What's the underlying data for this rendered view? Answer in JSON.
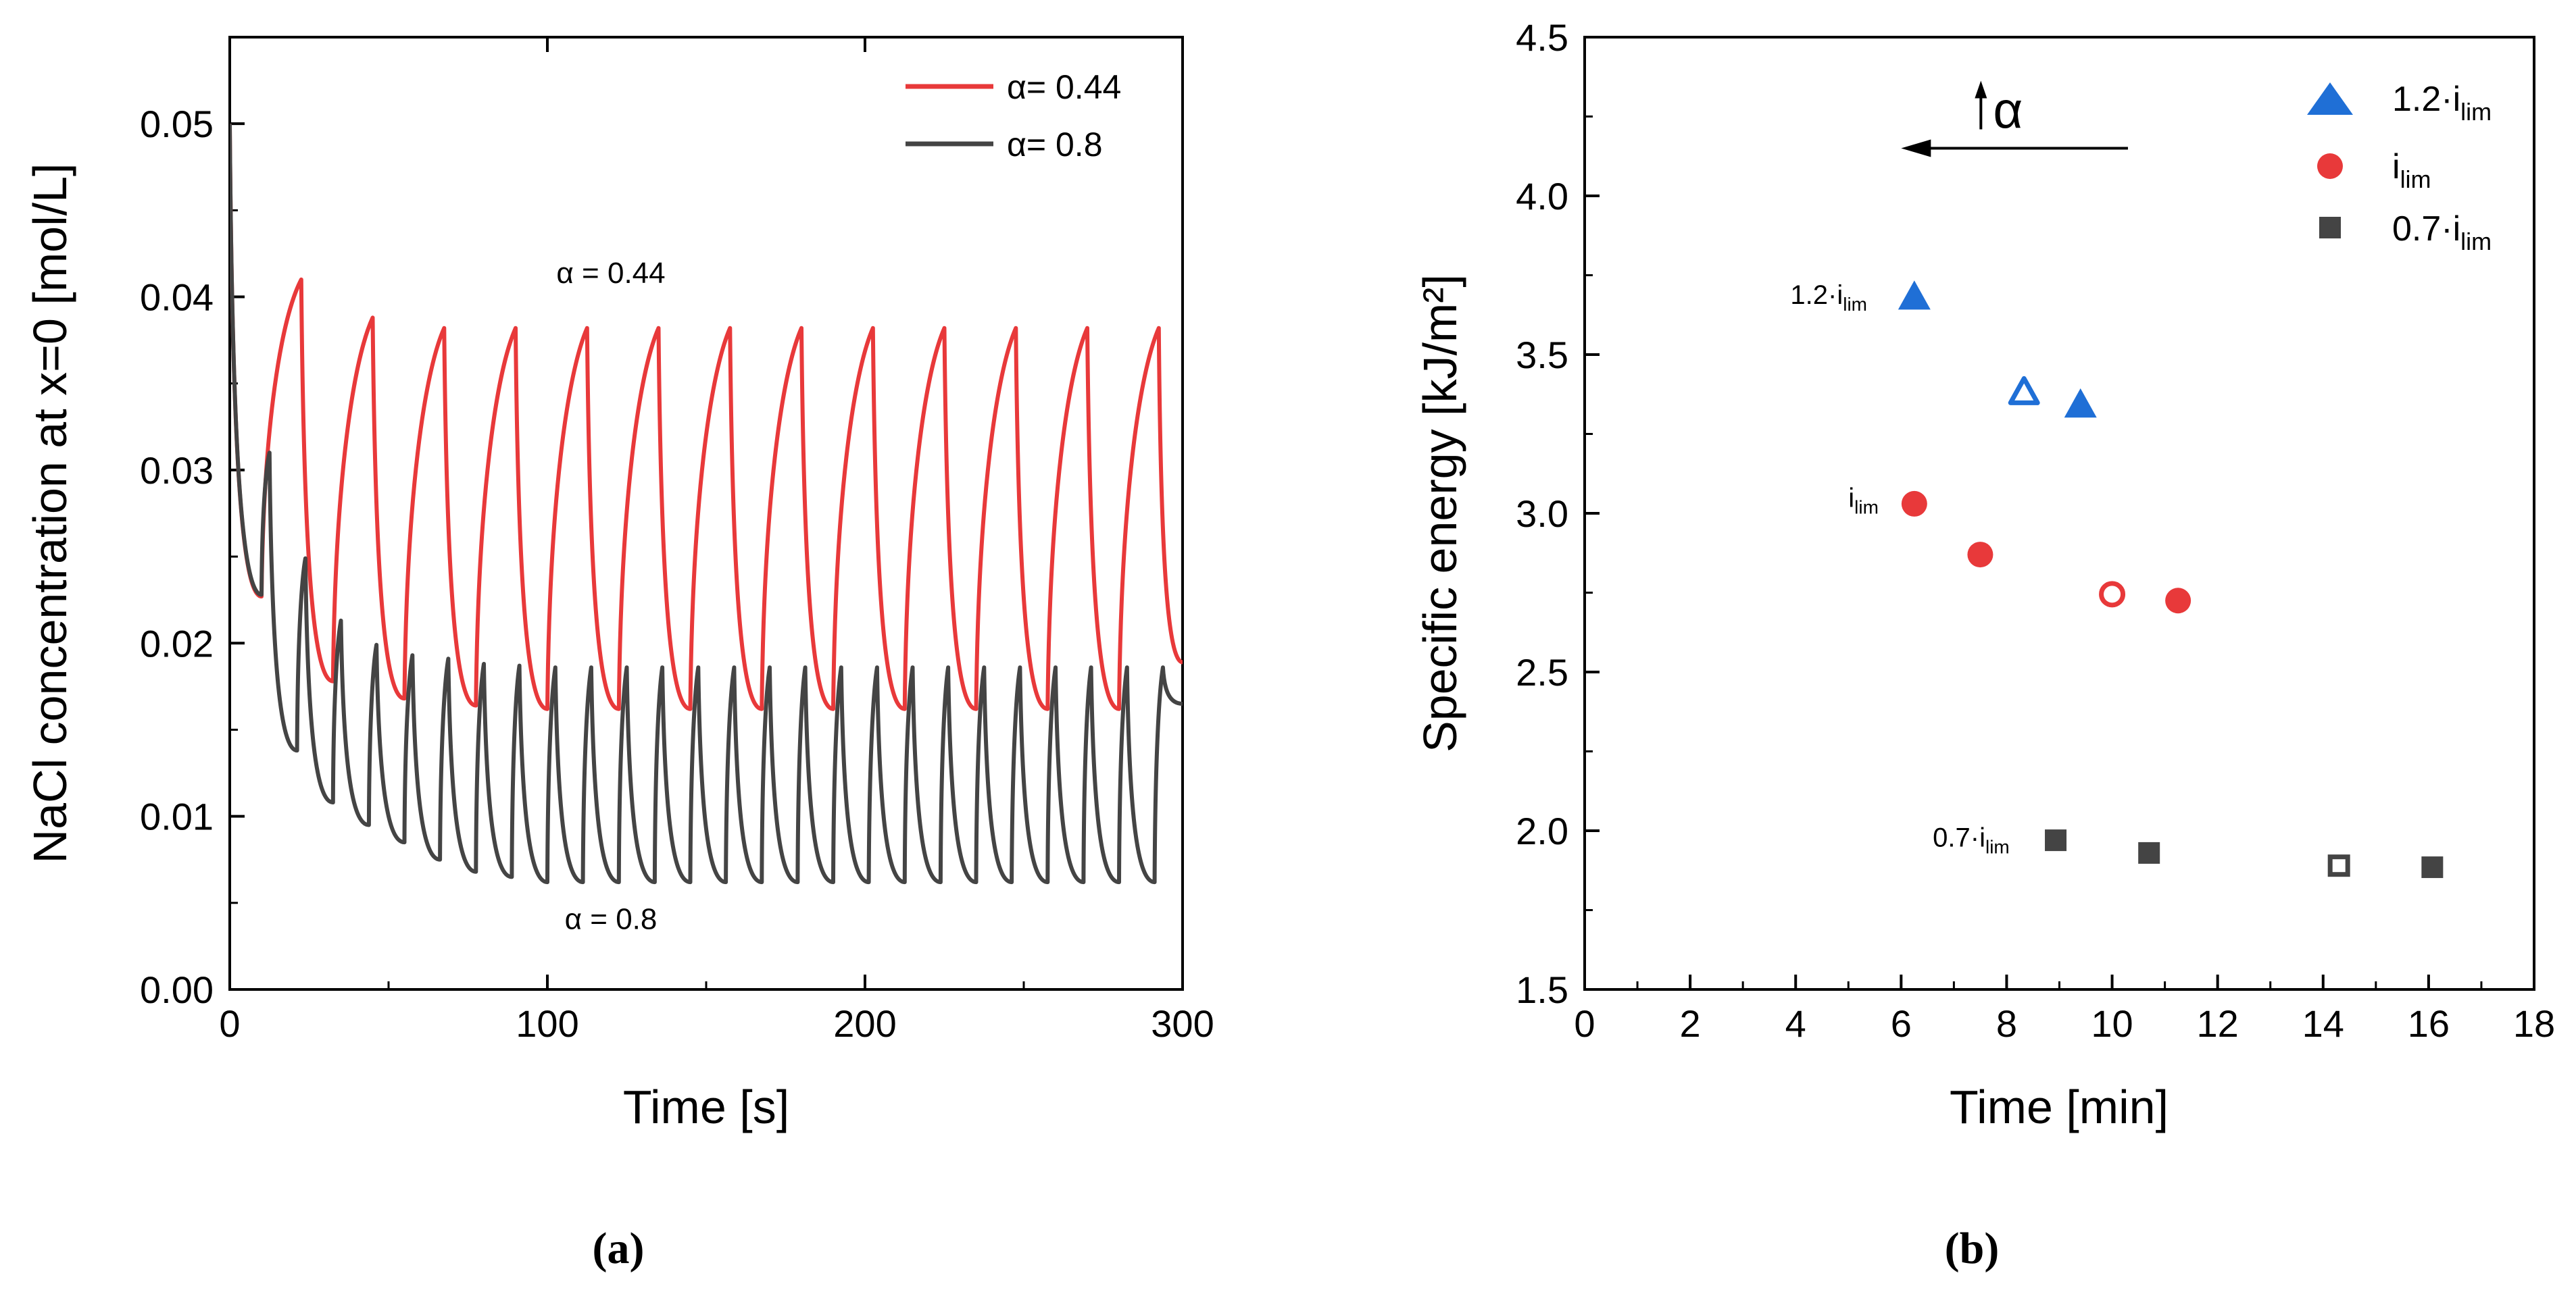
{
  "panels": {
    "a_caption": "(a)",
    "b_caption": "(b)"
  },
  "chart_data": [
    {
      "type": "line",
      "xlabel": "Time [s]",
      "ylabel": "NaCl concentration at x=0 [mol/L]",
      "xlim": [
        0,
        300
      ],
      "ylim": [
        0,
        0.055
      ],
      "x_ticks": [
        "0",
        "100",
        "200",
        "300"
      ],
      "y_ticks": [
        "0.00",
        "0.01",
        "0.02",
        "0.03",
        "0.04",
        "0.05"
      ],
      "legend_position": "top-right",
      "series": [
        {
          "name": "α= 0.44",
          "color": "#e8393a",
          "start": 0.05,
          "peaks": [
            [
              22.5,
              0.041
            ],
            [
              45,
              0.0388
            ],
            [
              67.5,
              0.0382
            ],
            [
              90,
              0.0382
            ],
            [
              112.5,
              0.0382
            ],
            [
              135,
              0.0382
            ],
            [
              157.5,
              0.0382
            ],
            [
              180,
              0.0382
            ],
            [
              202.5,
              0.0382
            ],
            [
              225,
              0.0382
            ],
            [
              247.5,
              0.0382
            ],
            [
              270,
              0.0382
            ],
            [
              292.5,
              0.0382
            ]
          ],
          "troughs": [
            [
              10,
              0.0227
            ],
            [
              32.5,
              0.0178
            ],
            [
              55,
              0.0168
            ],
            [
              77.5,
              0.0164
            ],
            [
              100,
              0.0162
            ],
            [
              122.5,
              0.0162
            ],
            [
              145,
              0.0162
            ],
            [
              167.5,
              0.0162
            ],
            [
              190,
              0.0162
            ],
            [
              212.5,
              0.0162
            ],
            [
              235,
              0.0162
            ],
            [
              257.5,
              0.0162
            ],
            [
              280,
              0.0162
            ],
            [
              300,
              0.0189
            ]
          ]
        },
        {
          "name": "α= 0.8",
          "color": "#444444",
          "start": 0.05,
          "peaks": [
            [
              12.5,
              0.031
            ],
            [
              23.8,
              0.0249
            ],
            [
              35,
              0.0213
            ],
            [
              46.2,
              0.0199
            ],
            [
              57.5,
              0.0193
            ],
            [
              68.8,
              0.0191
            ],
            [
              80,
              0.0188
            ],
            [
              91.2,
              0.0187
            ],
            [
              102.5,
              0.0186
            ],
            [
              113.8,
              0.0186
            ],
            [
              125,
              0.0186
            ],
            [
              136.2,
              0.0186
            ],
            [
              147.5,
              0.0186
            ],
            [
              158.8,
              0.0186
            ],
            [
              170,
              0.0186
            ],
            [
              181.2,
              0.0186
            ],
            [
              192.5,
              0.0186
            ],
            [
              203.8,
              0.0186
            ],
            [
              215,
              0.0186
            ],
            [
              226.2,
              0.0186
            ],
            [
              237.5,
              0.0186
            ],
            [
              248.8,
              0.0186
            ],
            [
              260,
              0.0186
            ],
            [
              271.2,
              0.0186
            ],
            [
              282.5,
              0.0186
            ],
            [
              293.8,
              0.0186
            ]
          ],
          "troughs": [
            [
              10,
              0.0228
            ],
            [
              21.2,
              0.0138
            ],
            [
              32.5,
              0.0108
            ],
            [
              43.8,
              0.0095
            ],
            [
              55,
              0.0085
            ],
            [
              66.2,
              0.0075
            ],
            [
              77.5,
              0.0068
            ],
            [
              88.8,
              0.0065
            ],
            [
              100,
              0.0062
            ],
            [
              111.2,
              0.0062
            ],
            [
              122.5,
              0.0062
            ],
            [
              133.8,
              0.0062
            ],
            [
              145,
              0.0062
            ],
            [
              156.2,
              0.0062
            ],
            [
              167.5,
              0.0062
            ],
            [
              178.8,
              0.0062
            ],
            [
              190,
              0.0062
            ],
            [
              201.2,
              0.0062
            ],
            [
              212.5,
              0.0062
            ],
            [
              223.8,
              0.0062
            ],
            [
              235,
              0.0062
            ],
            [
              246.2,
              0.0062
            ],
            [
              257.5,
              0.0062
            ],
            [
              268.8,
              0.0062
            ],
            [
              280,
              0.0062
            ],
            [
              291.2,
              0.0062
            ],
            [
              300,
              0.0165
            ]
          ]
        }
      ],
      "annotations": [
        {
          "text": "α = 0.44",
          "x": 120,
          "y": 0.0408
        },
        {
          "text": "α = 0.8",
          "x": 120,
          "y": 0.0035
        }
      ]
    },
    {
      "type": "scatter",
      "xlabel": "Time [min]",
      "ylabel": "Specific energy [kJ/m²]",
      "xlim": [
        0,
        18
      ],
      "ylim": [
        1.5,
        4.5
      ],
      "x_ticks": [
        "0",
        "2",
        "4",
        "6",
        "8",
        "10",
        "12",
        "14",
        "16",
        "18"
      ],
      "y_ticks": [
        "1.5",
        "2.0",
        "2.5",
        "3.0",
        "3.5",
        "4.0",
        "4.5"
      ],
      "legend_position": "top-right",
      "series": [
        {
          "name": "1.2·i",
          "sub": "lim",
          "marker": "triangle",
          "color": "#1f6fd6",
          "points": [
            {
              "x": 6.25,
              "y": 3.68,
              "filled": true
            },
            {
              "x": 8.33,
              "y": 3.38,
              "filled": false
            },
            {
              "x": 9.4,
              "y": 3.34,
              "filled": true
            }
          ]
        },
        {
          "name": "i",
          "sub": "lim",
          "marker": "circle",
          "color": "#e8393a",
          "points": [
            {
              "x": 6.25,
              "y": 3.03,
              "filled": true
            },
            {
              "x": 7.5,
              "y": 2.87,
              "filled": true
            },
            {
              "x": 10.0,
              "y": 2.745,
              "filled": false
            },
            {
              "x": 11.25,
              "y": 2.725,
              "filled": true
            }
          ]
        },
        {
          "name": "0.7·i",
          "sub": "lim",
          "marker": "square",
          "color": "#444444",
          "points": [
            {
              "x": 8.93,
              "y": 1.97,
              "filled": true
            },
            {
              "x": 10.7,
              "y": 1.93,
              "filled": true
            },
            {
              "x": 14.3,
              "y": 1.89,
              "filled": false
            },
            {
              "x": 16.07,
              "y": 1.885,
              "filled": true
            }
          ]
        }
      ],
      "annotations": [
        {
          "text": "1.2·i",
          "sub": "lim",
          "x": 3.9,
          "y": 3.66
        },
        {
          "text": "i",
          "sub": "lim",
          "x": 5.0,
          "y": 3.02
        },
        {
          "text": "0.7·i",
          "sub": "lim",
          "x": 6.6,
          "y": 1.95
        }
      ],
      "arrow_annotation": {
        "text": "α",
        "from": [
          10.3,
          4.15
        ],
        "to": [
          6.0,
          4.15
        ]
      }
    }
  ]
}
